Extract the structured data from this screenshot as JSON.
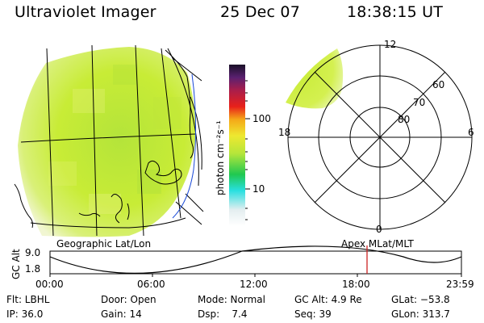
{
  "header": {
    "title": "Ultraviolet Imager",
    "date": "25 Dec 07",
    "time": "18:38:15 UT"
  },
  "colorbar": {
    "unit_label": "photon cm⁻²s⁻¹",
    "tick_labels": [
      "100",
      "10"
    ]
  },
  "left_panel": {
    "caption": "Geographic Lat/Lon"
  },
  "polar_plot": {
    "caption": "Apex MLat/MLT",
    "mlt_labels": {
      "top": "12",
      "left": "18",
      "right": "6",
      "bottom": "0"
    },
    "lat_labels": [
      "60",
      "70",
      "80"
    ]
  },
  "altitude_chart": {
    "ylabel": "GC Alt",
    "yticks": [
      "9.0",
      "1.8"
    ],
    "xticks": [
      "00:00",
      "06:00",
      "12:00",
      "18:00",
      "23:59"
    ],
    "marker_time": "18:38"
  },
  "status": {
    "row1": {
      "flt": "Flt: LBHL",
      "door": "Door: Open",
      "mode": "Mode: Normal",
      "gc_alt": "GC Alt: 4.9 Re",
      "glat": "GLat: −53.8"
    },
    "row2": {
      "ip": "IP: 36.0",
      "gain": "Gain: 14",
      "dsp": "Dsp:    7.4",
      "seq": "Seq: 39",
      "glon": "GLon: 313.7"
    }
  },
  "colors": {
    "image_base": "#c8ec36",
    "image_edge": "#eef6c8",
    "marker": "#cc2222"
  }
}
